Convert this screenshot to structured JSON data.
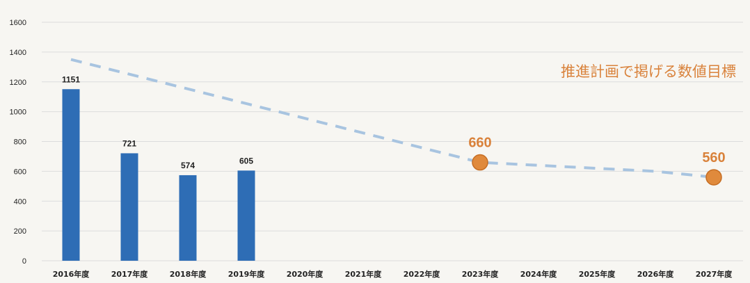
{
  "chart_data": {
    "type": "bar",
    "categories": [
      "2016年度",
      "2017年度",
      "2018年度",
      "2019年度",
      "2020年度",
      "2021年度",
      "2022年度",
      "2023年度",
      "2024年度",
      "2025年度",
      "2026年度",
      "2027年度"
    ],
    "series": [
      {
        "type": "bar",
        "values": [
          1151,
          721,
          574,
          605,
          null,
          null,
          null,
          null,
          null,
          null,
          null,
          null
        ],
        "color": "#2e6db5"
      },
      {
        "type": "line",
        "style": "dashed",
        "color": "#a8c4e0",
        "values": [
          1350,
          1240,
          1110,
          970,
          870,
          770,
          null,
          null,
          null,
          null,
          null,
          null
        ],
        "points": [
          {
            "category": "2016年度",
            "value": 1350
          },
          {
            "category": "2023年度",
            "value": 660
          },
          {
            "category": "2024年度",
            "value": 640
          },
          {
            "category": "2025年度",
            "value": 620
          },
          {
            "category": "2026年度",
            "value": 600
          },
          {
            "category": "2027年度",
            "value": 560
          }
        ]
      },
      {
        "type": "scatter",
        "color": "#e08a3c",
        "points": [
          {
            "category": "2023年度",
            "value": 660
          },
          {
            "category": "2027年度",
            "value": 560
          }
        ]
      }
    ],
    "bar_labels": [
      "1151",
      "721",
      "574",
      "605"
    ],
    "target_labels": [
      "660",
      "560"
    ],
    "annotation": "推進計画で掲げる数値目標",
    "ylim": [
      0,
      1600
    ],
    "yticks": [
      0,
      200,
      400,
      600,
      800,
      1000,
      1200,
      1400,
      1600
    ],
    "ytick_labels": [
      "0",
      "200",
      "400",
      "600",
      "800",
      "1000",
      "1200",
      "1400",
      "1600"
    ],
    "grid": true,
    "title": "",
    "xlabel": "",
    "ylabel": "",
    "colors": {
      "bar": "#2e6db5",
      "target_line": "#a8c4e0",
      "target_marker": "#e08a3c",
      "target_text": "#d9823b",
      "annotation": "#d9823b",
      "grid": "#dcdcdc"
    }
  }
}
